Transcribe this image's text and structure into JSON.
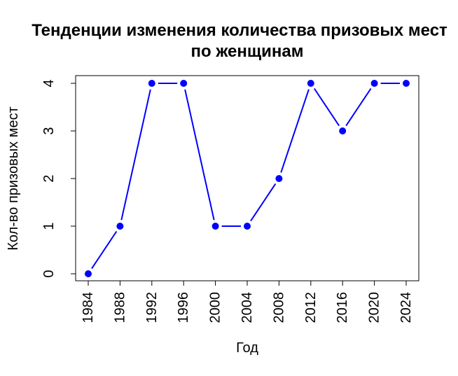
{
  "chart_data": {
    "type": "line",
    "title_lines": [
      "Тенденции изменения количества призовых мест",
      "по женщинам"
    ],
    "xlabel": "Год",
    "ylabel": "Кол-во призовых мест",
    "x": [
      1984,
      1988,
      1992,
      1996,
      2000,
      2004,
      2008,
      2012,
      2016,
      2020,
      2024
    ],
    "x_tick_labels": [
      "1984",
      "1988",
      "1992",
      "1996",
      "2000",
      "2004",
      "2008",
      "2012",
      "2016",
      "2020",
      "2024"
    ],
    "y_ticks": [
      0,
      1,
      2,
      3,
      4
    ],
    "y_tick_labels": [
      "0",
      "1",
      "2",
      "3",
      "4"
    ],
    "series": [
      {
        "values": [
          0,
          1,
          4,
          4,
          1,
          1,
          2,
          4,
          3,
          4,
          4
        ],
        "color": "#0000ff",
        "style": "line with points"
      }
    ],
    "xlim": [
      1984,
      2024
    ],
    "ylim": [
      0,
      4
    ],
    "grid": false,
    "legend": "none"
  }
}
